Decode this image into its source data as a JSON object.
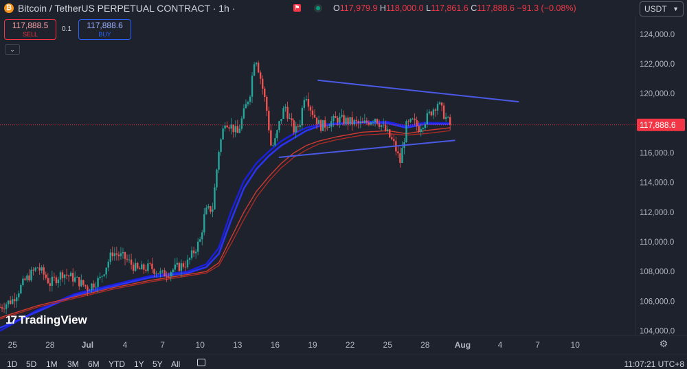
{
  "header": {
    "symbol": "Bitcoin / TetherUS PERPETUAL CONTRACT · 1h ·",
    "coin_glyph": "₿",
    "ohlc": {
      "o_label": "O",
      "o_value": "117,979.9",
      "h_label": "H",
      "h_value": "118,000.0",
      "l_label": "L",
      "l_value": "117,861.6",
      "c_label": "C",
      "c_value": "117,888.6",
      "change": "−91.3 (−0.08%)"
    },
    "currency": "USDT",
    "colors": {
      "down": "#f23645",
      "up": "#089981",
      "accent": "#2962ff"
    }
  },
  "trade": {
    "sell_price": "117,888.5",
    "sell_label": "SELL",
    "spread": "0.1",
    "buy_price": "117,888.6",
    "buy_label": "BUY"
  },
  "branding": {
    "logo_text": "TradingView",
    "logo_mark": "17"
  },
  "bottom": {
    "ranges": [
      "1D",
      "5D",
      "1M",
      "3M",
      "6M",
      "YTD",
      "1Y",
      "5Y",
      "All"
    ],
    "clock": "11:07:21 UTC+8"
  },
  "chart_data": {
    "type": "candlestick",
    "title": "",
    "xlabel": "",
    "ylabel": "",
    "y_ticks": [
      "124,000.0",
      "122,000.0",
      "120,000.0",
      "118,000.0",
      "116,000.0",
      "114,000.0",
      "112,000.0",
      "110,000.0",
      "108,000.0",
      "106,000.0",
      "104,000.0"
    ],
    "y_tick_values": [
      124000,
      122000,
      120000,
      118000,
      116000,
      114000,
      112000,
      110000,
      108000,
      106000,
      104000
    ],
    "ylim": [
      103700,
      125200
    ],
    "x_ticks": [
      "25",
      "28",
      "Jul",
      "4",
      "7",
      "10",
      "13",
      "16",
      "19",
      "22",
      "25",
      "28",
      "Aug",
      "4",
      "7",
      "10"
    ],
    "x_tick_days": [
      -6,
      -3,
      0,
      3,
      6,
      9,
      12,
      15,
      18,
      21,
      24,
      27,
      30,
      33,
      36,
      39
    ],
    "x_start_day": -7,
    "current_price_label": "117,888.6",
    "current_price": 117888.6,
    "close_series": {
      "days": [
        -7,
        -6,
        -5,
        -4,
        -3.5,
        -3,
        -2,
        -1,
        0,
        1,
        2,
        3,
        4,
        5,
        6,
        7,
        8,
        9,
        9.4,
        10,
        10.5,
        11,
        11.5,
        12,
        12.5,
        13,
        13.4,
        13.8,
        14.3,
        14.7,
        15,
        15.4,
        15.8,
        16.2,
        16.6,
        17,
        17.4,
        17.8,
        18.2,
        18.6,
        19,
        20,
        21,
        22,
        23,
        24,
        24.5,
        25,
        25.5,
        26,
        26.5,
        27,
        28,
        28.5,
        29
      ],
      "values": [
        105600,
        106100,
        107400,
        108300,
        107800,
        107200,
        107900,
        107500,
        106900,
        107500,
        109300,
        108900,
        108100,
        108300,
        107800,
        108200,
        108600,
        110100,
        112000,
        112300,
        116200,
        118200,
        117800,
        117300,
        118700,
        120100,
        122700,
        121200,
        119100,
        116300,
        116800,
        118200,
        119200,
        118100,
        117400,
        118100,
        120200,
        119100,
        118400,
        117800,
        117900,
        118300,
        118100,
        117900,
        118400,
        117300,
        116600,
        115400,
        117800,
        118100,
        117700,
        118200,
        119400,
        118600,
        117888.6
      ]
    },
    "moving_averages": [
      {
        "color": "#1a1fd8",
        "days": [
          -7,
          -4,
          -1,
          2,
          5,
          8,
          9.5,
          10.5,
          11.5,
          12.5,
          13.5,
          14.5,
          15.5,
          16.5,
          17.5,
          18.5,
          20,
          22,
          24,
          25.5,
          27,
          29
        ],
        "values": [
          104000,
          105400,
          106500,
          107100,
          107700,
          108000,
          108500,
          109600,
          112100,
          114100,
          115300,
          116100,
          116800,
          117300,
          117700,
          117900,
          118000,
          118100,
          118100,
          117800,
          118050,
          118000
        ]
      },
      {
        "color": "#2a33f0",
        "days": [
          -7,
          -4,
          -1,
          2,
          5,
          8,
          9.5,
          10.5,
          11.5,
          12.5,
          13.5,
          14.5,
          15.5,
          16.5,
          17.5,
          18.5,
          20,
          22,
          24,
          25.5,
          27,
          29
        ],
        "values": [
          104200,
          105300,
          106400,
          107000,
          107600,
          107900,
          108300,
          109200,
          111500,
          113600,
          114900,
          115800,
          116500,
          117000,
          117500,
          117800,
          117950,
          118050,
          118000,
          117700,
          117950,
          117950
        ]
      },
      {
        "color": "#d03a30",
        "days": [
          -7,
          -4,
          -1,
          2,
          5,
          8,
          9.5,
          10.5,
          11.5,
          12.5,
          13.5,
          14.5,
          15.5,
          16.5,
          17.5,
          18.5,
          20,
          22,
          24,
          25.5,
          27,
          29
        ],
        "values": [
          104900,
          105700,
          106300,
          106900,
          107400,
          107800,
          108000,
          108600,
          110300,
          112000,
          113400,
          114400,
          115300,
          116000,
          116500,
          116800,
          117100,
          117400,
          117500,
          117300,
          117500,
          117700
        ]
      },
      {
        "color": "#a82a24",
        "days": [
          -7,
          -4,
          -1,
          2,
          5,
          8,
          9.5,
          10.5,
          11.5,
          12.5,
          13.5,
          14.5,
          15.5,
          16.5,
          17.5,
          18.5,
          20,
          22,
          24,
          25.5,
          27,
          29
        ],
        "values": [
          104800,
          105600,
          106200,
          106800,
          107300,
          107700,
          107900,
          108400,
          109900,
          111500,
          113000,
          114100,
          115000,
          115700,
          116200,
          116600,
          116900,
          117200,
          117300,
          117200,
          117300,
          117500
        ]
      }
    ],
    "trendlines": [
      {
        "color": "#4a5ae6",
        "from": {
          "day": 18.4,
          "value": 120900
        },
        "to": {
          "day": 34.5,
          "value": 119450
        }
      },
      {
        "color": "#4a5ae6",
        "from": {
          "day": 15.3,
          "value": 115700
        },
        "to": {
          "day": 29.4,
          "value": 116850
        }
      }
    ],
    "grid": false,
    "legend": "none"
  }
}
